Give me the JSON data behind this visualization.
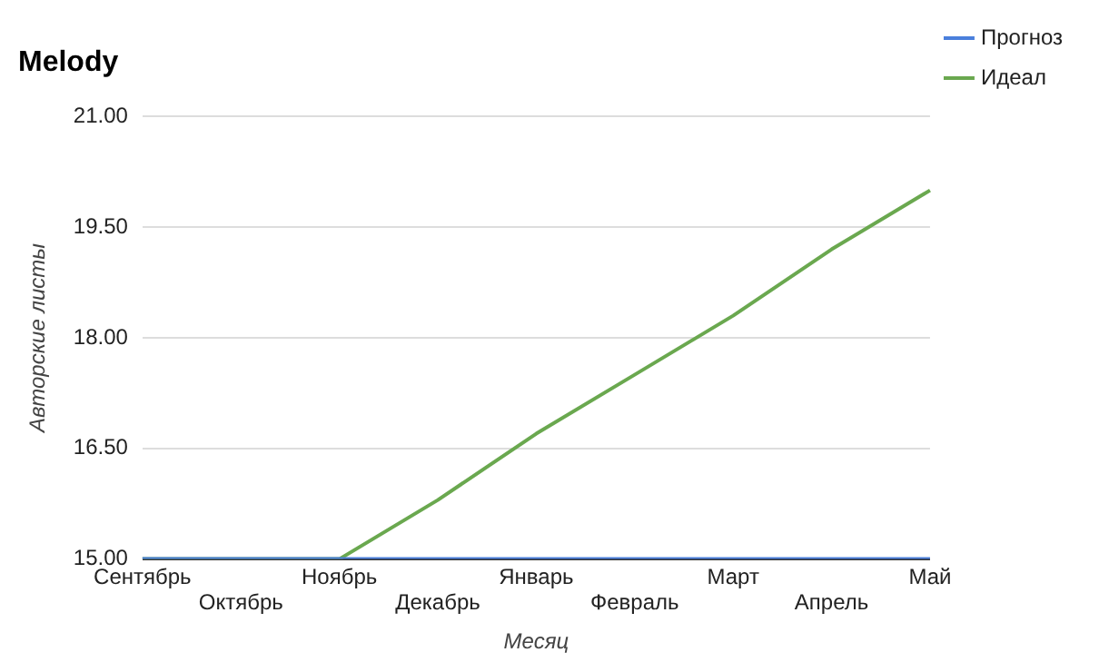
{
  "chart_data": {
    "type": "line",
    "title": "Melody",
    "xlabel": "Месяц",
    "ylabel": "Авторские листы",
    "categories": [
      "Сентябрь",
      "Октябрь",
      "Ноябрь",
      "Декабрь",
      "Январь",
      "Февраль",
      "Март",
      "Апрель",
      "Май"
    ],
    "series": [
      {
        "name": "Прогноз",
        "color": "#4a7fdc",
        "values": [
          15,
          15,
          15,
          15,
          15,
          15,
          15,
          15,
          15
        ]
      },
      {
        "name": "Идеал",
        "color": "#6aa84f",
        "values": [
          15,
          15,
          15,
          15.8,
          16.7,
          17.5,
          18.3,
          19.2,
          20
        ]
      }
    ],
    "ylim": [
      15,
      21
    ],
    "yticks": [
      {
        "value": 15,
        "label": "15.00"
      },
      {
        "value": 16.5,
        "label": "16.50"
      },
      {
        "value": 18,
        "label": "18.00"
      },
      {
        "value": 19.5,
        "label": "19.50"
      },
      {
        "value": 21,
        "label": "21.00"
      }
    ],
    "grid": "y",
    "legend": "right",
    "marker": "none",
    "line_style": "solid"
  }
}
